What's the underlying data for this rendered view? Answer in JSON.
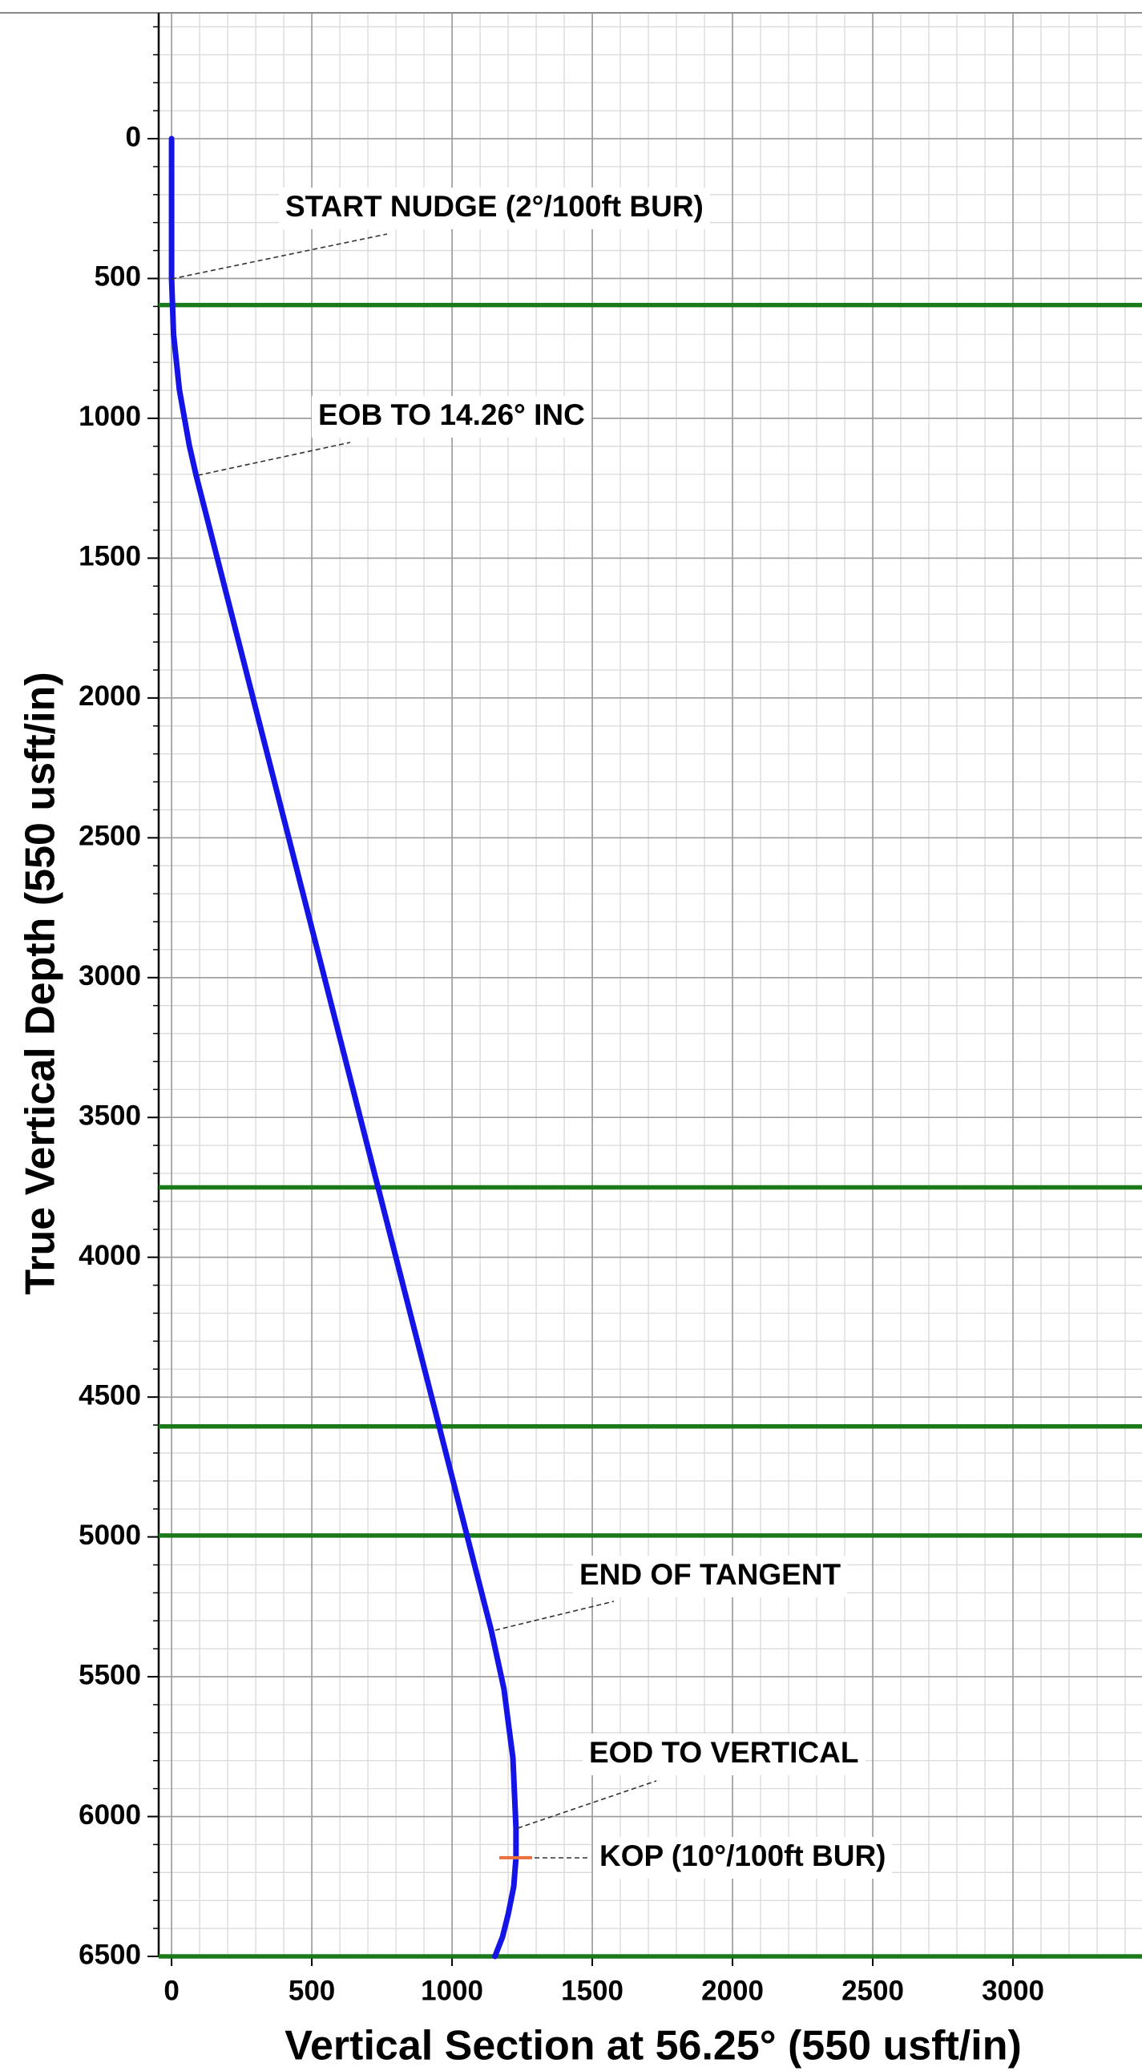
{
  "chart_data": {
    "type": "well_plan",
    "xlabel": "Vertical Section at 56.25° (550 usft/in)",
    "ylabel": "True Vertical Depth (550 usft/in)",
    "xlim": [
      -46,
      3460
    ],
    "ylim": [
      -450,
      6500
    ],
    "y_inverted": true,
    "xticks": [
      0,
      500,
      1000,
      1500,
      2000,
      2500,
      3000
    ],
    "yticks": [
      0,
      500,
      1000,
      1500,
      2000,
      2500,
      3000,
      3500,
      4000,
      4500,
      5000,
      5500,
      6000,
      6500
    ],
    "grid": true,
    "minor_grid_step": 100,
    "well_path": {
      "color": "#1414e6",
      "vs": [
        0,
        0,
        7,
        28,
        63,
        88,
        1140,
        1185,
        1217,
        1228,
        1228,
        1220,
        1200,
        1180,
        1153
      ],
      "tvd": [
        0,
        500,
        700,
        899,
        1096,
        1206,
        5335,
        5543,
        5791,
        6041,
        6147,
        6250,
        6350,
        6430,
        6500
      ]
    },
    "horizons": {
      "color": "#1a7a1a",
      "values": [
        595,
        3750,
        4605,
        4995,
        6500
      ]
    },
    "kop_marker": {
      "color": "#e8703a",
      "value": 6147
    },
    "annotations": [
      "START NUDGE (2°/100ft BUR)",
      "EOB TO 14.26° INC",
      "END OF TANGENT",
      "EOD TO VERTICAL",
      "KOP (10°/100ft BUR)"
    ]
  }
}
